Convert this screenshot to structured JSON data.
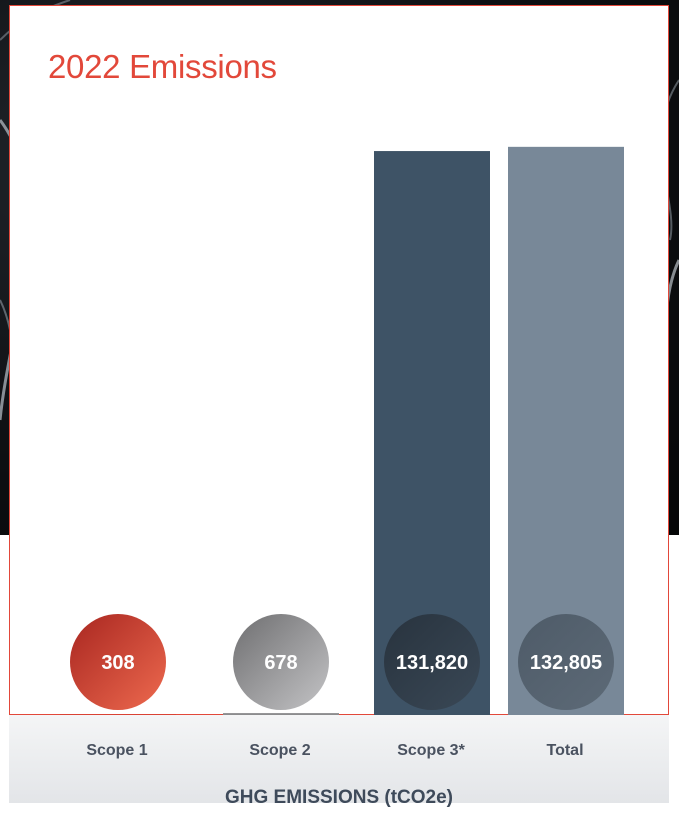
{
  "chart_data": {
    "type": "bar",
    "title": "2022 Emissions",
    "xlabel": "GHG EMISSIONS (tCO2e)",
    "ylabel": "",
    "categories": [
      "Scope 1",
      "Scope 2",
      "Scope 3*",
      "Total"
    ],
    "values": [
      308,
      678,
      131820,
      132805
    ],
    "data_labels": [
      "308",
      "678",
      "131,820",
      "132,805"
    ],
    "ylim": [
      0,
      140000
    ],
    "grid": false,
    "legend": "none"
  },
  "colors": {
    "accent": "#e2483a",
    "scope1_bubble": "#c8352b",
    "scope2_bubble": "#8c8c8e",
    "scope3_bar": "#3e5366",
    "scope3_bubble": "#28333e",
    "total_bar": "#788898",
    "total_bubble": "#4e5b68"
  }
}
